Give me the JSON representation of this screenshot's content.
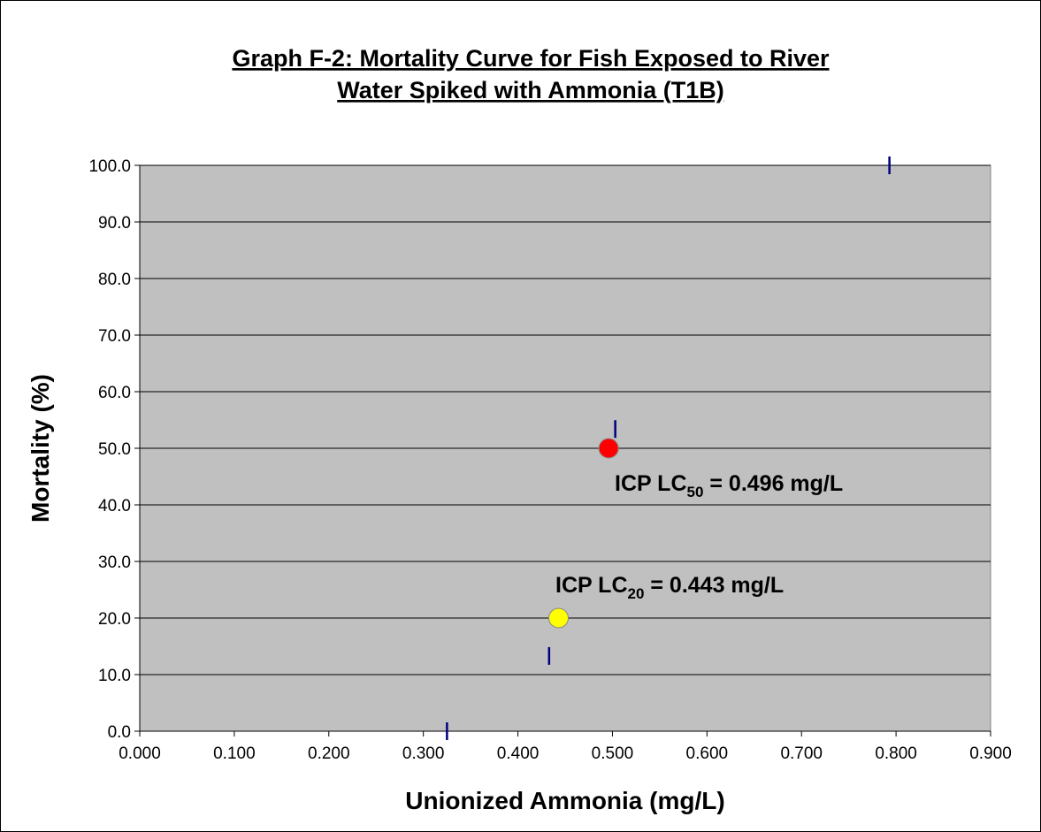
{
  "chart_data": {
    "type": "scatter",
    "title": [
      "Graph F-2: Mortality Curve for Fish Exposed to River",
      "Water Spiked with Ammonia (T1B)"
    ],
    "x_label": "Unionized Ammonia (mg/L)",
    "y_label": "Mortality (%)",
    "series": [
      {
        "color": "#000080",
        "marker": "dash",
        "x": [
          0.325,
          0.433,
          0.503,
          0.793
        ],
        "values": [
          0,
          13.3,
          53.4,
          100
        ]
      },
      {
        "color": "#ff0000",
        "marker": "circle",
        "x": [
          0.496
        ],
        "values": [
          50
        ]
      },
      {
        "color": "#ffff00",
        "marker": "circle",
        "x": [
          0.443
        ],
        "values": [
          20
        ]
      }
    ],
    "annotations": [
      {
        "prefix": "ICP LC",
        "sub": "50",
        "suffix": " = 0.496 mg/L"
      },
      {
        "prefix": "ICP LC",
        "sub": "20",
        "suffix": " = 0.443 mg/L"
      }
    ],
    "xlim": [
      0,
      0.9
    ],
    "xticks": [
      {
        "value": 0,
        "label": "0.000"
      },
      {
        "value": 0.1,
        "label": "0.100"
      },
      {
        "value": 0.2,
        "label": "0.200"
      },
      {
        "value": 0.3,
        "label": "0.300"
      },
      {
        "value": 0.4,
        "label": "0.400"
      },
      {
        "value": 0.5,
        "label": "0.500"
      },
      {
        "value": 0.6,
        "label": "0.600"
      },
      {
        "value": 0.7,
        "label": "0.700"
      },
      {
        "value": 0.8,
        "label": "0.800"
      },
      {
        "value": 0.9,
        "label": "0.900"
      }
    ],
    "ylim": [
      0,
      100
    ],
    "yticks": [
      {
        "value": 0,
        "label": "0.0"
      },
      {
        "value": 10,
        "label": "10.0"
      },
      {
        "value": 20,
        "label": "20.0"
      },
      {
        "value": 30,
        "label": "30.0"
      },
      {
        "value": 40,
        "label": "40.0"
      },
      {
        "value": 50,
        "label": "50.0"
      },
      {
        "value": 60,
        "label": "60.0"
      },
      {
        "value": 70,
        "label": "70.0"
      },
      {
        "value": 80,
        "label": "80.0"
      },
      {
        "value": 90,
        "label": "90.0"
      },
      {
        "value": 100,
        "label": "100.0"
      }
    ],
    "grid": true,
    "background": "#c0c0c0"
  }
}
